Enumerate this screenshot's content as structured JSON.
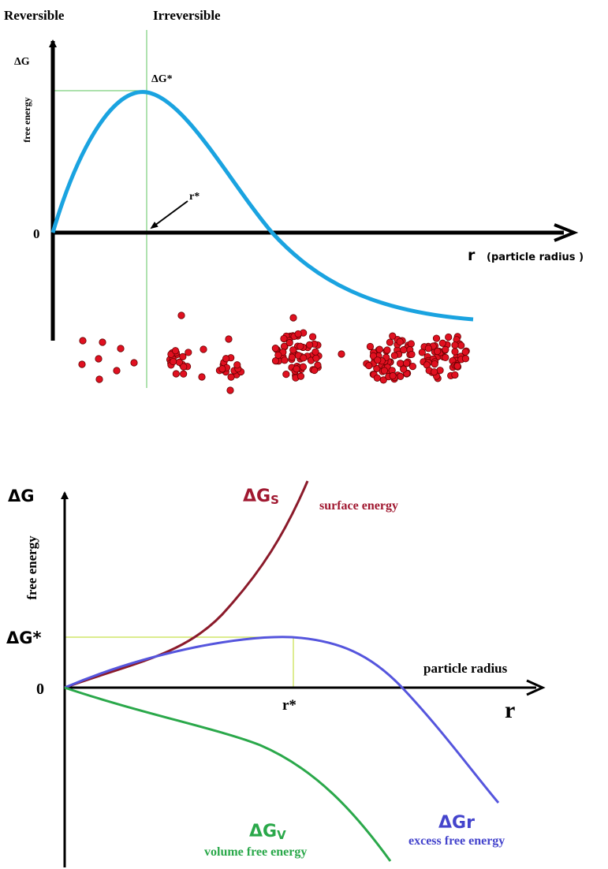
{
  "top": {
    "reversible": "Reversible",
    "irreversible": "Irreversible",
    "y_label": "ΔG",
    "y_sublabel": "free energy",
    "peak_label": "ΔG*",
    "critical_radius": "r*",
    "origin": "0",
    "x_label": "r",
    "x_sublabel": "(particle radius )"
  },
  "bottom": {
    "y_label": "ΔG",
    "y_sublabel": "free energy",
    "peak_label": "ΔG*",
    "origin": "0",
    "critical_radius": "r*",
    "x_sublabel": "particle radius",
    "x_label": "r",
    "surface": {
      "symbol": "ΔG",
      "subscript": "S",
      "label": "surface energy"
    },
    "excess": {
      "symbol": "ΔGr",
      "label": "excess free energy"
    },
    "volume": {
      "symbol": "ΔG",
      "subscript": "V",
      "label": "volume free energy"
    }
  }
}
